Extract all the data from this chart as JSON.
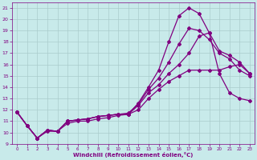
{
  "xlabel": "Windchill (Refroidissement éolien,°C)",
  "bg_color": "#c8eaea",
  "grid_color": "#aacccc",
  "line_color": "#800080",
  "marker": "D",
  "markersize": 2,
  "linewidth": 0.9,
  "xlim": [
    -0.5,
    23.5
  ],
  "ylim": [
    9,
    21.5
  ],
  "yticks": [
    9,
    10,
    11,
    12,
    13,
    14,
    15,
    16,
    17,
    18,
    19,
    20,
    21
  ],
  "xticks": [
    0,
    1,
    2,
    3,
    4,
    5,
    6,
    7,
    8,
    9,
    10,
    11,
    12,
    13,
    14,
    15,
    16,
    17,
    18,
    19,
    20,
    21,
    22,
    23
  ],
  "lines": [
    {
      "x": [
        0,
        1,
        2,
        3,
        4,
        5,
        6,
        7,
        8,
        9,
        10,
        11,
        12,
        13,
        14,
        15,
        16,
        17,
        18,
        19,
        20,
        21,
        22,
        23
      ],
      "y": [
        11.8,
        10.6,
        9.5,
        10.2,
        10.1,
        11.0,
        11.1,
        11.2,
        11.4,
        11.5,
        11.6,
        11.6,
        12.6,
        14.0,
        15.5,
        18.0,
        20.3,
        21.0,
        20.5,
        18.8,
        15.2,
        13.5,
        13.0,
        12.8
      ]
    },
    {
      "x": [
        0,
        1,
        2,
        3,
        4,
        5,
        6,
        7,
        8,
        9,
        10,
        11,
        12,
        13,
        14,
        15,
        16,
        17,
        18,
        19,
        20,
        21,
        22,
        23
      ],
      "y": [
        11.8,
        10.6,
        9.5,
        10.2,
        10.1,
        11.0,
        11.1,
        11.2,
        11.4,
        11.5,
        11.6,
        11.7,
        12.5,
        13.8,
        14.8,
        16.2,
        17.8,
        19.2,
        19.0,
        18.2,
        17.0,
        16.5,
        15.5,
        15.0
      ]
    },
    {
      "x": [
        0,
        1,
        2,
        3,
        4,
        5,
        6,
        7,
        8,
        9,
        10,
        11,
        12,
        13,
        14,
        15,
        16,
        17,
        18,
        19,
        20,
        21,
        22,
        23
      ],
      "y": [
        11.8,
        10.6,
        9.5,
        10.2,
        10.1,
        11.0,
        11.1,
        11.2,
        11.4,
        11.5,
        11.6,
        11.6,
        12.4,
        13.5,
        14.2,
        15.2,
        16.0,
        17.0,
        18.5,
        18.8,
        17.2,
        16.8,
        16.2,
        15.2
      ]
    },
    {
      "x": [
        0,
        1,
        2,
        3,
        4,
        5,
        6,
        7,
        8,
        9,
        10,
        11,
        12,
        13,
        14,
        15,
        16,
        17,
        18,
        19,
        20,
        21,
        22,
        23
      ],
      "y": [
        11.8,
        10.6,
        9.5,
        10.1,
        10.1,
        10.8,
        11.0,
        11.0,
        11.2,
        11.3,
        11.5,
        11.6,
        12.0,
        13.0,
        13.8,
        14.5,
        15.0,
        15.5,
        15.5,
        15.5,
        15.5,
        15.8,
        16.0,
        15.2
      ]
    }
  ]
}
